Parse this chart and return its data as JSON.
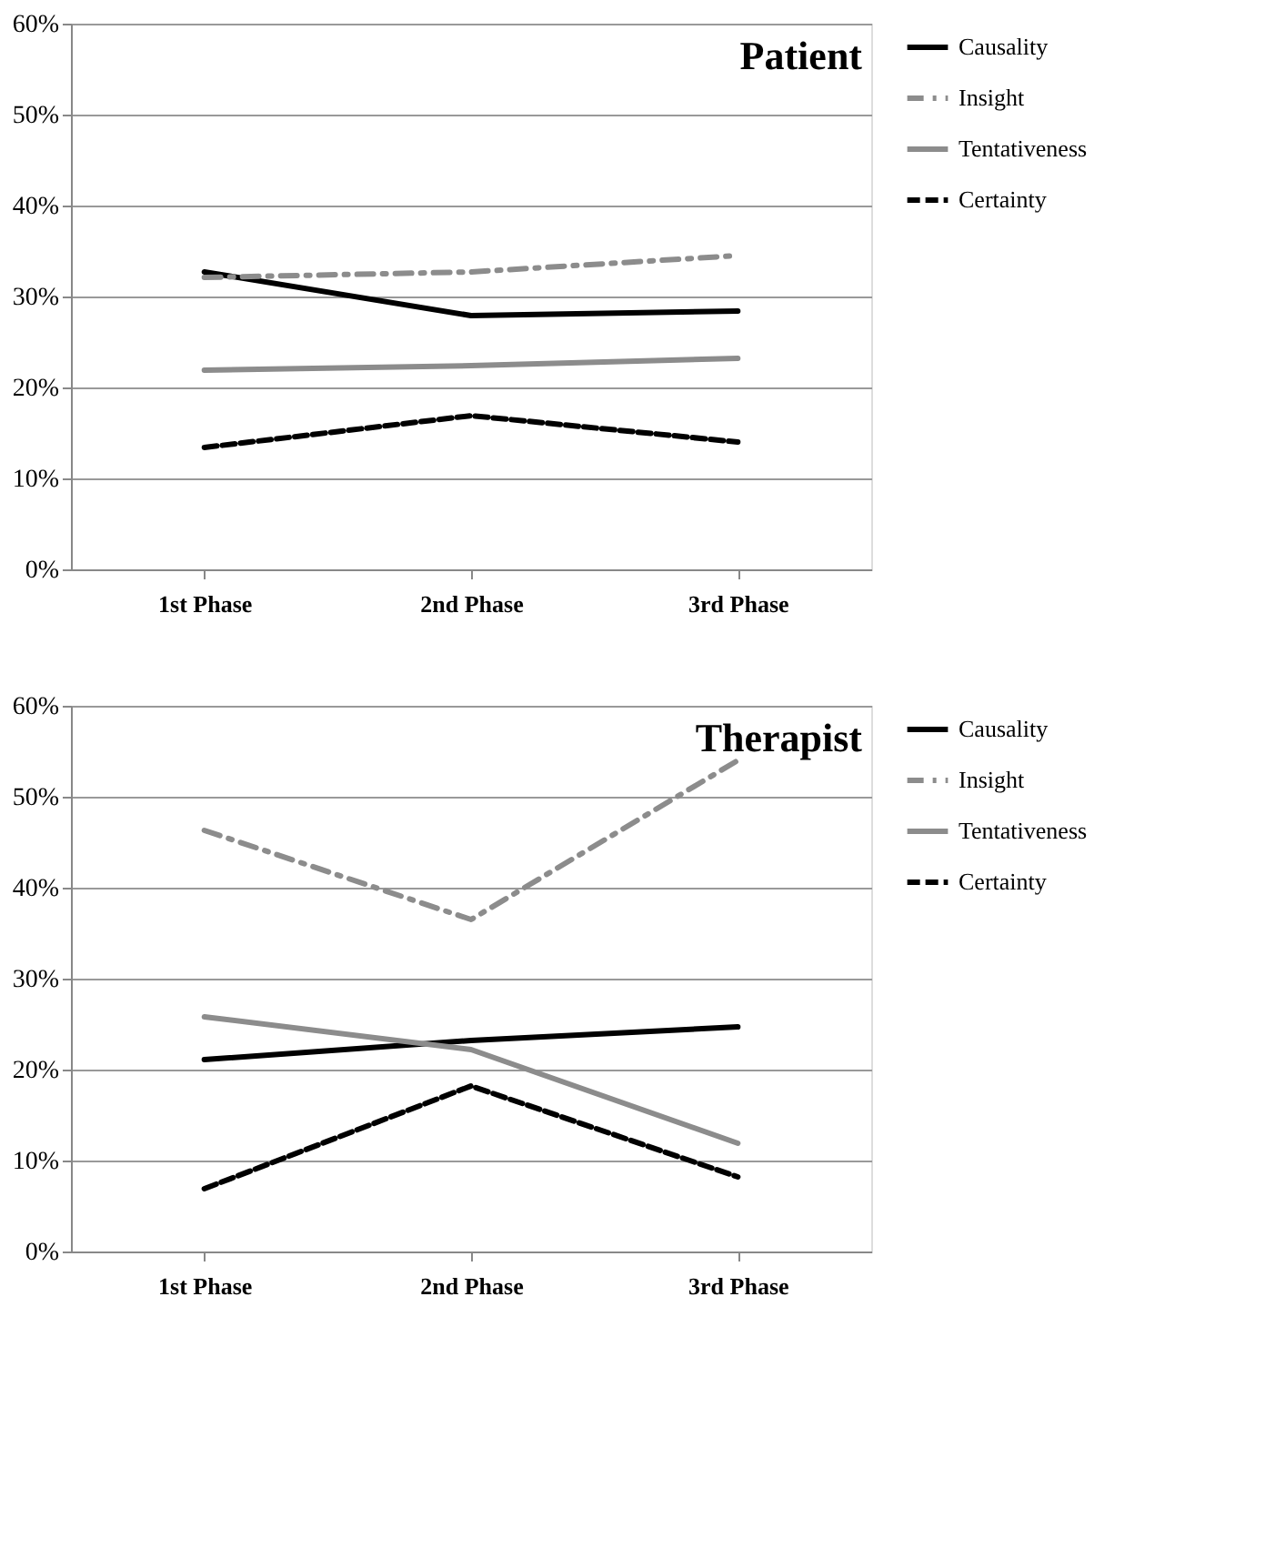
{
  "chart_data": [
    {
      "type": "line",
      "title": "Patient",
      "categories": [
        "1st Phase",
        "2nd Phase",
        "3rd Phase"
      ],
      "ylim": [
        0,
        60
      ],
      "yticks": [
        {
          "value": 0,
          "label": "0%"
        },
        {
          "value": 10,
          "label": "10%"
        },
        {
          "value": 20,
          "label": "20%"
        },
        {
          "value": 30,
          "label": "30%"
        },
        {
          "value": 40,
          "label": "40%"
        },
        {
          "value": 50,
          "label": "50%"
        },
        {
          "value": 60,
          "label": "60%"
        }
      ],
      "grid": "y",
      "legend": "right",
      "marker": "none",
      "series": [
        {
          "name": "Causality",
          "color": "#000000",
          "line_style": "solid",
          "values": [
            32.7,
            27.9,
            28.4
          ]
        },
        {
          "name": "Insight",
          "color": "#8c8c8c",
          "line_style": "dashdot",
          "values": [
            32.1,
            32.7,
            34.5
          ]
        },
        {
          "name": "Tentativeness",
          "color": "#8c8c8c",
          "line_style": "solid",
          "values": [
            21.9,
            22.4,
            23.2
          ]
        },
        {
          "name": "Certainty",
          "color": "#000000",
          "line_style": "dashed",
          "values": [
            13.4,
            16.9,
            14.0
          ]
        }
      ]
    },
    {
      "type": "line",
      "title": "Therapist",
      "categories": [
        "1st Phase",
        "2nd Phase",
        "3rd Phase"
      ],
      "ylim": [
        0,
        60
      ],
      "yticks": [
        {
          "value": 0,
          "label": "0%"
        },
        {
          "value": 10,
          "label": "10%"
        },
        {
          "value": 20,
          "label": "20%"
        },
        {
          "value": 30,
          "label": "30%"
        },
        {
          "value": 40,
          "label": "40%"
        },
        {
          "value": 50,
          "label": "50%"
        },
        {
          "value": 60,
          "label": "60%"
        }
      ],
      "grid": "y",
      "legend": "right",
      "marker": "none",
      "series": [
        {
          "name": "Causality",
          "color": "#000000",
          "line_style": "solid",
          "values": [
            21.1,
            23.2,
            24.7
          ]
        },
        {
          "name": "Insight",
          "color": "#8c8c8c",
          "line_style": "dashdot",
          "values": [
            46.3,
            36.5,
            54.0
          ]
        },
        {
          "name": "Tentativeness",
          "color": "#8c8c8c",
          "line_style": "solid",
          "values": [
            25.8,
            22.2,
            11.9
          ]
        },
        {
          "name": "Certainty",
          "color": "#000000",
          "line_style": "dashed",
          "values": [
            6.9,
            18.2,
            8.2
          ]
        }
      ]
    }
  ]
}
